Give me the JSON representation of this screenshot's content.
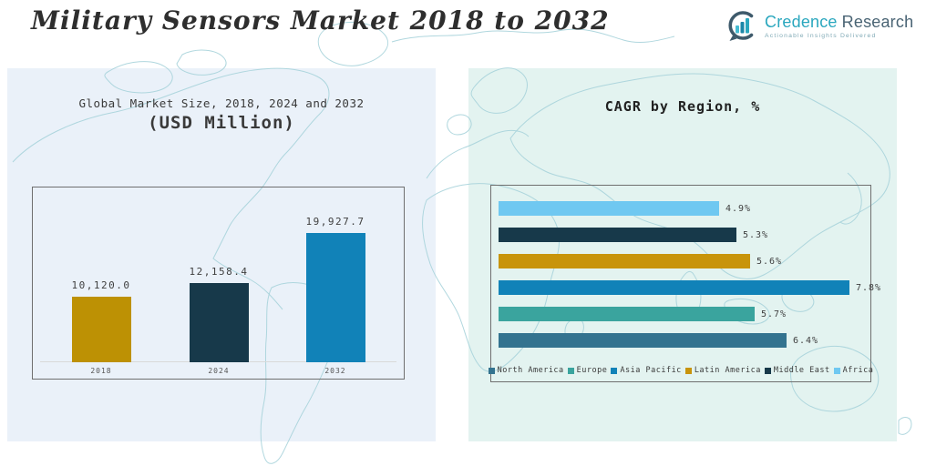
{
  "header": {
    "title": "Military Sensors Market 2018 to 2032",
    "logo": {
      "brand_primary": "Credence",
      "brand_secondary": "Research",
      "tagline": "Actionable Insights Delivered",
      "brand_primary_color": "#2AA7BE",
      "brand_secondary_color": "#4A6474"
    }
  },
  "colors": {
    "left_panel_bg": "#EAF1F9",
    "right_panel_bg": "#E3F3F0",
    "map_line": "#A7D3DA",
    "box_border": "#6F6F6F",
    "gold": "#BD9104",
    "navy": "#17394A",
    "blue": "#1182B8",
    "steel_blue": "#33738F",
    "teal": "#3AA49E",
    "light_blue": "#6FC8F1"
  },
  "chart_data": [
    {
      "type": "bar",
      "orientation": "vertical",
      "title_lines": [
        "Global Market Size, 2018, 2024 and 2032",
        "(USD Million)"
      ],
      "title": "Global Market Size, 2018, 2024 and 2032 (USD Million)",
      "categories": [
        "2018",
        "2024",
        "2032"
      ],
      "values": [
        10120.0,
        12158.4,
        19927.7
      ],
      "labels": [
        "10,120.0",
        "12,158.4",
        "19,927.7"
      ],
      "colors": [
        "#BD9104",
        "#17394A",
        "#1182B8"
      ],
      "xlabel": "",
      "ylabel": "USD Million",
      "ylim": [
        0,
        21000
      ],
      "grid": false,
      "legend_position": "none"
    },
    {
      "type": "bar",
      "orientation": "horizontal",
      "title": "CAGR by Region, %",
      "rows_top_to_bottom": [
        {
          "region": "Africa",
          "value": 4.9,
          "label": "4.9%",
          "color": "#6FC8F1"
        },
        {
          "region": "Middle East",
          "value": 5.3,
          "label": "5.3%",
          "color": "#17394A"
        },
        {
          "region": "Latin America",
          "value": 5.6,
          "label": "5.6%",
          "color": "#C8940B"
        },
        {
          "region": "Asia Pacific",
          "value": 7.8,
          "label": "7.8%",
          "color": "#1182B8"
        },
        {
          "region": "Europe",
          "value": 5.7,
          "label": "5.7%",
          "color": "#3AA49E"
        },
        {
          "region": "North America",
          "value": 6.4,
          "label": "6.4%",
          "color": "#33738F"
        }
      ],
      "legend": [
        {
          "label": "North America",
          "color": "#33738F"
        },
        {
          "label": "Europe",
          "color": "#3AA49E"
        },
        {
          "label": "Asia Pacific",
          "color": "#1182B8"
        },
        {
          "label": "Latin America",
          "color": "#C8940B"
        },
        {
          "label": "Middle East",
          "color": "#17394A"
        },
        {
          "label": "Africa",
          "color": "#6FC8F1"
        }
      ],
      "xlim": [
        0,
        8.2
      ],
      "grid": false,
      "legend_position": "bottom"
    }
  ]
}
